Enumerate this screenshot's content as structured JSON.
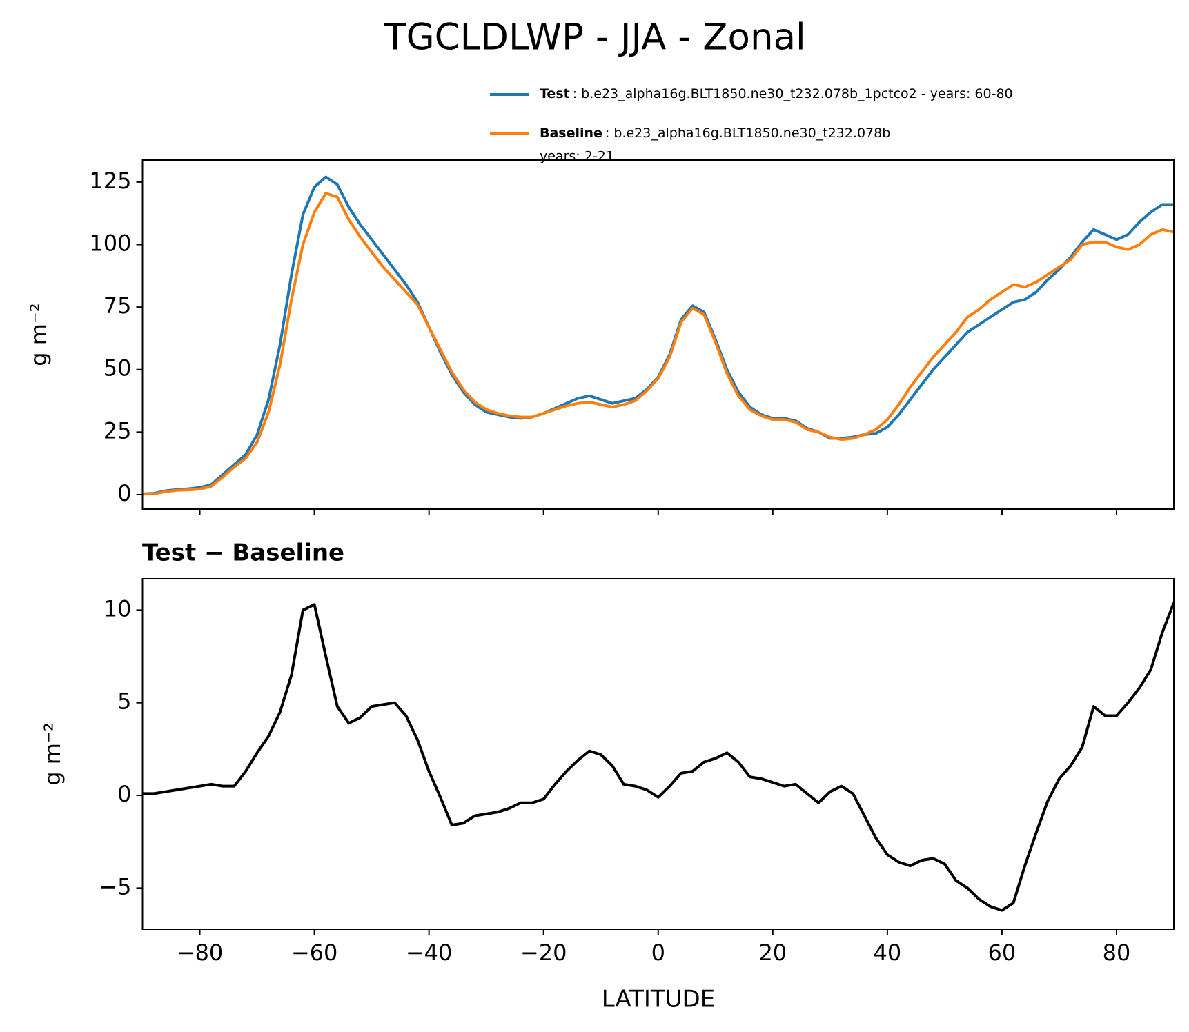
{
  "chart_data": [
    {
      "type": "line",
      "title": "TGCLDLWP - JJA - Zonal",
      "ylabel": "g m⁻²",
      "x": [
        -90,
        -88,
        -86,
        -84,
        -82,
        -80,
        -78,
        -76,
        -74,
        -72,
        -70,
        -68,
        -66,
        -64,
        -62,
        -60,
        -58,
        -56,
        -54,
        -52,
        -50,
        -48,
        -46,
        -44,
        -42,
        -40,
        -38,
        -36,
        -34,
        -32,
        -30,
        -28,
        -26,
        -24,
        -22,
        -20,
        -18,
        -16,
        -14,
        -12,
        -10,
        -8,
        -6,
        -4,
        -2,
        0,
        2,
        4,
        6,
        8,
        10,
        12,
        14,
        16,
        18,
        20,
        22,
        24,
        26,
        28,
        30,
        32,
        34,
        36,
        38,
        40,
        42,
        44,
        46,
        48,
        50,
        52,
        54,
        56,
        58,
        60,
        62,
        64,
        66,
        68,
        70,
        72,
        74,
        76,
        78,
        80,
        82,
        84,
        86,
        88,
        90
      ],
      "series": [
        {
          "name": "Test",
          "legend_detail": ": b.e23_alpha16g.BLT1850.ne30_t232.078b_1pctco2 - years: 60-80",
          "color": "#1f77b4",
          "values": [
            0.3,
            0.5,
            1.5,
            2,
            2.3,
            2.8,
            4,
            8,
            12,
            16,
            24,
            38,
            60,
            88,
            112,
            123,
            127,
            124,
            115,
            108,
            102,
            96,
            90,
            84,
            77,
            67,
            57,
            48,
            41,
            36,
            33,
            32,
            31,
            30.5,
            31,
            32.5,
            34.5,
            36.5,
            38.5,
            39.5,
            38,
            36.5,
            37.5,
            38.5,
            42,
            47,
            56,
            70,
            75.5,
            73,
            62,
            50,
            41,
            35,
            32,
            30.5,
            30.5,
            29.5,
            26.5,
            25,
            22.5,
            22.5,
            23,
            24,
            24.5,
            27,
            32,
            38,
            44,
            50,
            55,
            60,
            65,
            68,
            71,
            74,
            77,
            78,
            81,
            86,
            90,
            95,
            101,
            106,
            104,
            102,
            104,
            109,
            113,
            116,
            116
          ]
        },
        {
          "name": "Baseline",
          "legend_detail": ": b.e23_alpha16g.BLT1850.ne30_t232.078b",
          "legend_detail_2": "years: 2-21",
          "color": "#ff7f0e",
          "values": [
            0.2,
            0.3,
            1.2,
            1.7,
            1.9,
            2.2,
            3.3,
            7,
            11,
            14.5,
            21,
            33,
            52,
            78,
            100,
            113,
            120.5,
            119,
            110,
            103,
            97,
            91,
            86,
            81,
            76,
            67,
            58,
            49,
            42,
            37,
            34,
            32.5,
            31.5,
            31,
            31,
            32.5,
            34,
            35.5,
            36.5,
            37,
            36,
            35,
            36,
            37.5,
            41.5,
            46.5,
            55,
            69,
            74.5,
            72,
            61,
            48.5,
            39.5,
            34,
            31.5,
            30,
            30,
            29,
            26,
            25,
            23,
            22,
            22.5,
            24,
            26,
            30,
            36,
            43,
            49,
            55,
            60,
            65,
            71,
            74,
            78,
            81,
            84,
            83,
            85,
            88,
            91,
            94,
            100,
            101,
            101,
            99,
            98,
            100,
            104,
            106,
            105
          ]
        }
      ],
      "xlim": [
        -90,
        90
      ],
      "xticks": [
        -80,
        -60,
        -40,
        -20,
        0,
        20,
        40,
        60,
        80
      ],
      "ylim": [
        -5.8,
        133.8
      ],
      "yticks": [
        0,
        25,
        50,
        75,
        100,
        125
      ]
    },
    {
      "type": "line",
      "title": "Test − Baseline",
      "xlabel": "LATITUDE",
      "ylabel": "g m⁻²",
      "x": [
        -90,
        -88,
        -86,
        -84,
        -82,
        -80,
        -78,
        -76,
        -74,
        -72,
        -70,
        -68,
        -66,
        -64,
        -62,
        -60,
        -58,
        -56,
        -54,
        -52,
        -50,
        -48,
        -46,
        -44,
        -42,
        -40,
        -38,
        -36,
        -34,
        -32,
        -30,
        -28,
        -26,
        -24,
        -22,
        -20,
        -18,
        -16,
        -14,
        -12,
        -10,
        -8,
        -6,
        -4,
        -2,
        0,
        2,
        4,
        6,
        8,
        10,
        12,
        14,
        16,
        18,
        20,
        22,
        24,
        26,
        28,
        30,
        32,
        34,
        36,
        38,
        40,
        42,
        44,
        46,
        48,
        50,
        52,
        54,
        56,
        58,
        60,
        62,
        64,
        66,
        68,
        70,
        72,
        74,
        76,
        78,
        80,
        82,
        84,
        86,
        88,
        90
      ],
      "series": [
        {
          "color": "#000000",
          "values": [
            0.1,
            0.1,
            0.2,
            0.3,
            0.4,
            0.5,
            0.6,
            0.5,
            0.5,
            1.3,
            2.3,
            3.2,
            4.5,
            6.5,
            10,
            10.3,
            7.5,
            4.8,
            3.9,
            4.2,
            4.8,
            4.9,
            5.0,
            4.3,
            3.0,
            1.3,
            -0.1,
            -1.6,
            -1.5,
            -1.1,
            -1.0,
            -0.9,
            -0.7,
            -0.4,
            -0.4,
            -0.2,
            0.6,
            1.3,
            1.9,
            2.4,
            2.2,
            1.6,
            0.6,
            0.5,
            0.3,
            -0.1,
            0.5,
            1.2,
            1.3,
            1.8,
            2.0,
            2.3,
            1.8,
            1.0,
            0.9,
            0.7,
            0.5,
            0.6,
            0.1,
            -0.4,
            0.2,
            0.5,
            0.1,
            -1.1,
            -2.3,
            -3.2,
            -3.6,
            -3.8,
            -3.5,
            -3.4,
            -3.7,
            -4.6,
            -5.0,
            -5.6,
            -6.0,
            -6.2,
            -5.8,
            -3.8,
            -2.0,
            -0.3,
            0.9,
            1.6,
            2.6,
            4.8,
            4.3,
            4.3,
            5.0,
            5.8,
            6.8,
            8.8,
            10.4
          ]
        }
      ],
      "xlim": [
        -90,
        90
      ],
      "xticks": [
        {
          "value": -80,
          "label": "−80"
        },
        {
          "value": -60,
          "label": "−60"
        },
        {
          "value": -40,
          "label": "−40"
        },
        {
          "value": -20,
          "label": "−20"
        },
        0,
        20,
        40,
        60,
        80
      ],
      "ylim": [
        -7.22,
        11.69
      ],
      "yticks": [
        {
          "value": -5,
          "label": "−5"
        },
        0,
        5,
        10
      ]
    }
  ]
}
